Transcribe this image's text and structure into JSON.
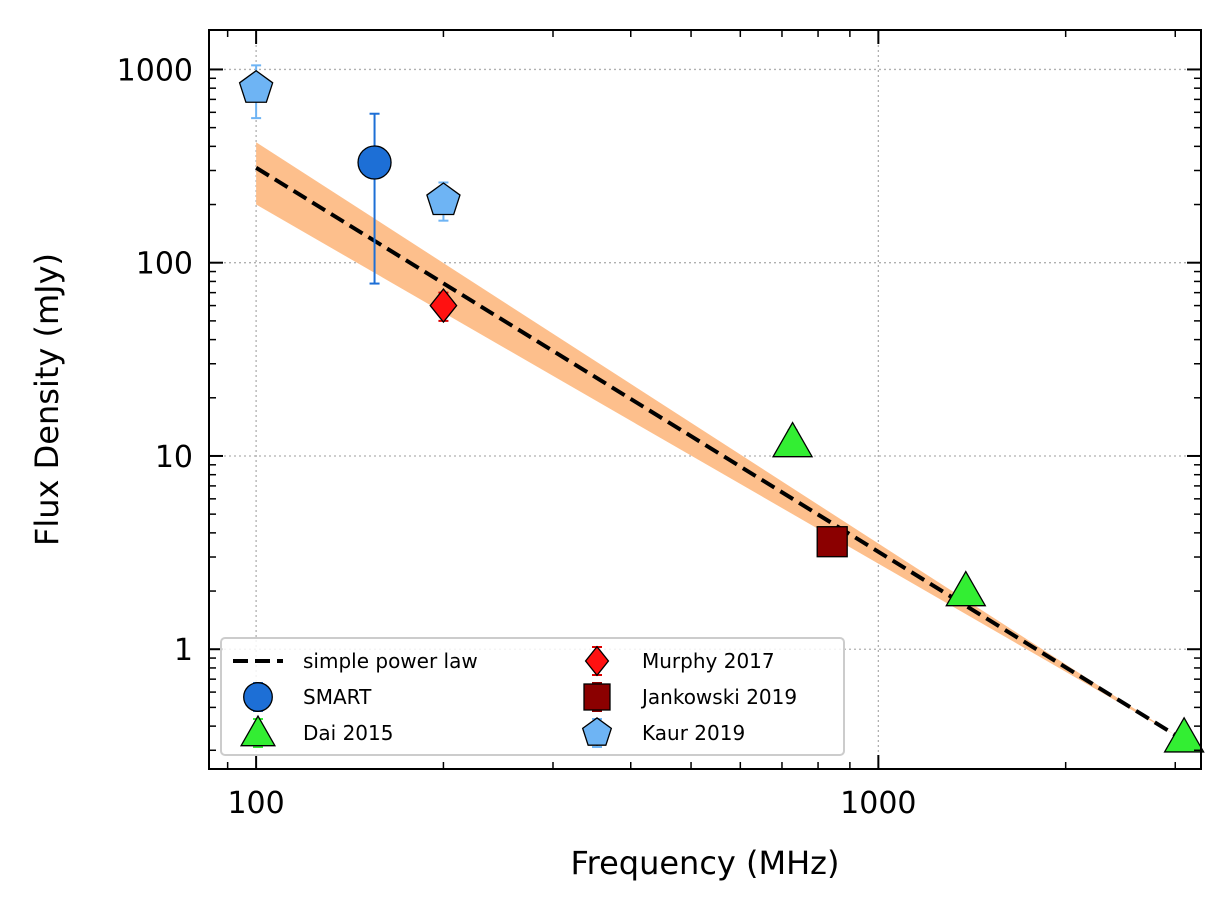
{
  "chart_data": {
    "type": "scatter",
    "xscale": "log",
    "yscale": "log",
    "xlim": [
      84,
      3300
    ],
    "ylim": [
      0.24,
      1600
    ],
    "xlabel": "Frequency (MHz)",
    "ylabel": "Flux Density (mJy)",
    "x_ticks": [
      {
        "value": 100,
        "label": "100"
      },
      {
        "value": 1000,
        "label": "1000"
      }
    ],
    "y_ticks": [
      {
        "value": 1,
        "label": "1"
      },
      {
        "value": 10,
        "label": "10"
      },
      {
        "value": 100,
        "label": "100"
      },
      {
        "value": 1000,
        "label": "1000"
      }
    ],
    "grid": true,
    "legend": {
      "placement": "lower-left",
      "columns": 2
    },
    "fit": {
      "name": "simple power law",
      "x": [
        100,
        3000
      ],
      "y": [
        310,
        0.36
      ],
      "band_lower": [
        200,
        0.36
      ],
      "band_upper": [
        420,
        0.36
      ],
      "line_color": "#000000",
      "band_color": "#fdbf8c"
    },
    "series": [
      {
        "name": "SMART",
        "marker": "circle",
        "color": "#1d6fd6",
        "errcolor": "#1d6fd6",
        "points": [
          {
            "x": 155,
            "y": 330,
            "ylo": 78,
            "yhi": 590
          }
        ]
      },
      {
        "name": "Dai 2015",
        "marker": "triangle",
        "color": "#33ee33",
        "errcolor": "#33ee33",
        "points": [
          {
            "x": 728,
            "y": 11.8,
            "ylo": 10.2,
            "yhi": 13.6
          },
          {
            "x": 1382,
            "y": 2.0,
            "ylo": 1.9,
            "yhi": 2.1
          },
          {
            "x": 3100,
            "y": 0.35,
            "ylo": 0.34,
            "yhi": 0.36
          }
        ]
      },
      {
        "name": "Murphy 2017",
        "marker": "diamond",
        "color": "#ff1111",
        "errcolor": "#dd0000",
        "points": [
          {
            "x": 200,
            "y": 60,
            "ylo": 50,
            "yhi": 70
          }
        ]
      },
      {
        "name": "Jankowski 2019",
        "marker": "square",
        "color": "#8b0000",
        "errcolor": "#8b0000",
        "points": [
          {
            "x": 843,
            "y": 3.6,
            "ylo": 3.05,
            "yhi": 4.2
          }
        ]
      },
      {
        "name": "Kaur 2019",
        "marker": "pentagon",
        "color": "#6eb4f4",
        "errcolor": "#6eb4f4",
        "points": [
          {
            "x": 100,
            "y": 800,
            "ylo": 560,
            "yhi": 1050
          },
          {
            "x": 200,
            "y": 210,
            "ylo": 165,
            "yhi": 260
          }
        ]
      }
    ],
    "legend_order": [
      "simple power law",
      "SMART",
      "Dai 2015",
      "Murphy 2017",
      "Jankowski 2019",
      "Kaur 2019"
    ]
  }
}
